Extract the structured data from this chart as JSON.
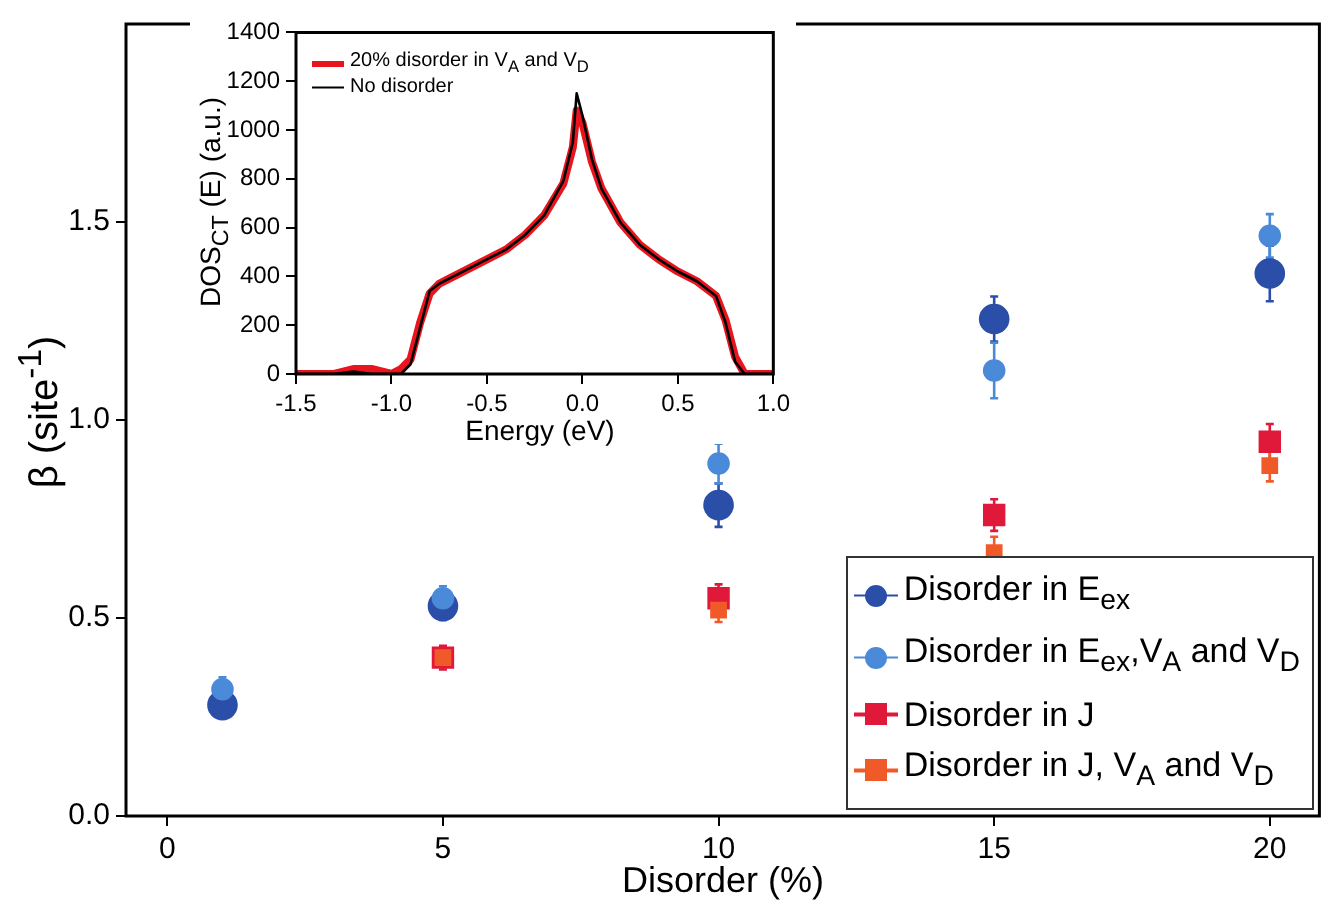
{
  "chart_data": [
    {
      "type": "scatter",
      "xlabel": "Disorder (%)",
      "ylabel": "β (site$^{-1}$)",
      "x": [
        1,
        5,
        10,
        15,
        20
      ],
      "xlim": [
        -0.75,
        20.9
      ],
      "xticks": [
        0,
        5,
        10,
        15,
        20
      ],
      "ylim": [
        0,
        2
      ],
      "yticks": [
        {
          "value": 0,
          "label": "0.0"
        },
        {
          "value": 0.5,
          "label": "0.5"
        },
        {
          "value": 1,
          "label": "1.0"
        },
        {
          "value": 1.5,
          "label": "1.5"
        }
      ],
      "grid": false,
      "legend": "bottom right",
      "series": [
        {
          "name": "Disorder in E$_{ex}$",
          "color": "#2b4fa8",
          "marker": "circle",
          "values": [
            0.28,
            0.53,
            0.785,
            1.255,
            1.37
          ],
          "errors": [
            0.03,
            0.035,
            0.055,
            0.057,
            0.07
          ]
        },
        {
          "name": "Disorder in E$_{ex}$,V$_{A}$ and V$_{D}$",
          "color": "#4a8ad8",
          "marker": "circle",
          "values": [
            0.32,
            0.55,
            0.89,
            1.125,
            1.465
          ],
          "errors": [
            0.03,
            0.03,
            0.05,
            0.07,
            0.055
          ]
        },
        {
          "name": "Disorder in J",
          "color": "#e0193a",
          "marker": "square",
          "values": [
            null,
            0.4,
            0.55,
            0.76,
            0.945
          ],
          "errors": [
            null,
            0.03,
            0.035,
            0.04,
            0.045
          ]
        },
        {
          "name": "Disorder in J, V$_{A}$ and V$_{D}$",
          "color": "#f05a28",
          "marker": "square",
          "values": [
            null,
            0.4,
            0.52,
            0.665,
            0.885
          ],
          "errors": [
            null,
            null,
            0.03,
            0.04,
            0.04
          ]
        }
      ]
    },
    {
      "type": "line",
      "xlabel": "Energy (eV)",
      "ylabel": "DOS$_{CT}$ (E) (a.u.)",
      "xlim": [
        -1.5,
        1
      ],
      "xticks": [
        {
          "value": -1.5,
          "label": "-1.5"
        },
        {
          "value": -1,
          "label": "-1.0"
        },
        {
          "value": -0.5,
          "label": "-0.5"
        },
        {
          "value": 0,
          "label": "0.0"
        },
        {
          "value": 0.5,
          "label": "0.5"
        },
        {
          "value": 1,
          "label": "1.0"
        }
      ],
      "ylim": [
        0,
        1400
      ],
      "yticks": [
        0,
        200,
        400,
        600,
        800,
        1000,
        1200,
        1400
      ],
      "grid": false,
      "legend": "top left",
      "marker": "none",
      "line_style": "solid",
      "series": [
        {
          "name": "20% disorder in V$_{A}$ and V$_{D}$",
          "color": "#e8141e",
          "x": [
            -1.5,
            -1.3,
            -1.2,
            -1.1,
            -1.0,
            -0.95,
            -0.9,
            -0.85,
            -0.8,
            -0.75,
            -0.7,
            -0.6,
            -0.5,
            -0.4,
            -0.3,
            -0.2,
            -0.1,
            -0.05,
            -0.03,
            0,
            0.05,
            0.1,
            0.2,
            0.3,
            0.4,
            0.5,
            0.6,
            0.7,
            0.75,
            0.8,
            0.85,
            0.9,
            1.0
          ],
          "values": [
            0,
            0,
            20,
            20,
            0,
            20,
            60,
            210,
            330,
            370,
            390,
            430,
            470,
            510,
            570,
            650,
            780,
            930,
            1080,
            1030,
            870,
            760,
            620,
            530,
            470,
            420,
            380,
            320,
            220,
            70,
            0,
            0,
            0
          ]
        },
        {
          "name": "No disorder",
          "color": "#000000",
          "x": [
            -1.5,
            -1.3,
            -1.2,
            -1.1,
            -1.0,
            -0.95,
            -0.9,
            -0.85,
            -0.8,
            -0.75,
            -0.7,
            -0.6,
            -0.5,
            -0.4,
            -0.3,
            -0.2,
            -0.1,
            -0.05,
            -0.03,
            0,
            0.05,
            0.1,
            0.2,
            0.3,
            0.4,
            0.5,
            0.6,
            0.7,
            0.75,
            0.8,
            0.85,
            0.9,
            1.0
          ],
          "values": [
            0,
            0,
            10,
            0,
            0,
            0,
            40,
            190,
            340,
            370,
            390,
            430,
            470,
            510,
            570,
            650,
            790,
            950,
            1150,
            1060,
            880,
            760,
            620,
            530,
            470,
            420,
            380,
            320,
            210,
            50,
            0,
            0,
            0
          ]
        }
      ]
    }
  ]
}
